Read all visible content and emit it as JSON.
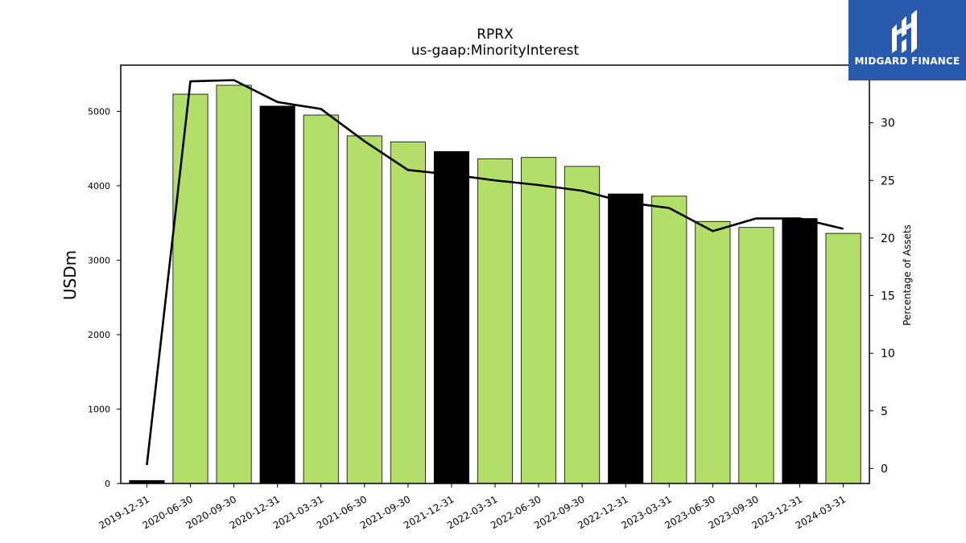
{
  "chart_data": {
    "type": "bar",
    "title": "RPRX",
    "subtitle": "us-gaap:MinorityInterest",
    "ylabel": "USDm",
    "y2label": "Percentage of Assets",
    "ylim": [
      0,
      5620
    ],
    "y2lim": [
      -1.3,
      35
    ],
    "yticks": [
      0,
      1000,
      2000,
      3000,
      4000,
      5000
    ],
    "y2ticks": [
      0,
      5,
      10,
      15,
      20,
      25,
      30
    ],
    "categories": [
      "2019-12-31",
      "2020-06-30",
      "2020-09-30",
      "2020-12-31",
      "2021-03-31",
      "2021-06-30",
      "2021-09-30",
      "2021-12-31",
      "2022-03-31",
      "2022-06-30",
      "2022-09-30",
      "2022-12-31",
      "2023-03-31",
      "2023-06-30",
      "2023-09-30",
      "2023-12-31",
      "2024-03-31"
    ],
    "series": [
      {
        "type": "bar",
        "values": [
          40,
          5230,
          5350,
          5070,
          4950,
          4670,
          4590,
          4460,
          4360,
          4380,
          4260,
          3890,
          3860,
          3520,
          3440,
          3560,
          3360
        ],
        "colors": [
          "#000000",
          "#b3de69",
          "#b3de69",
          "#000000",
          "#b3de69",
          "#b3de69",
          "#b3de69",
          "#000000",
          "#b3de69",
          "#b3de69",
          "#b3de69",
          "#000000",
          "#b3de69",
          "#b3de69",
          "#b3de69",
          "#000000",
          "#b3de69"
        ]
      },
      {
        "type": "line",
        "axis": "right",
        "color": "#000000",
        "values": [
          0.3,
          33.6,
          33.7,
          31.8,
          31.2,
          28.4,
          25.9,
          25.5,
          25.0,
          24.6,
          24.1,
          23.1,
          22.6,
          20.6,
          21.7,
          21.7,
          20.8
        ]
      }
    ]
  },
  "logo": {
    "text": "MIDGARD FINANCE",
    "color": "#2a5aad"
  }
}
